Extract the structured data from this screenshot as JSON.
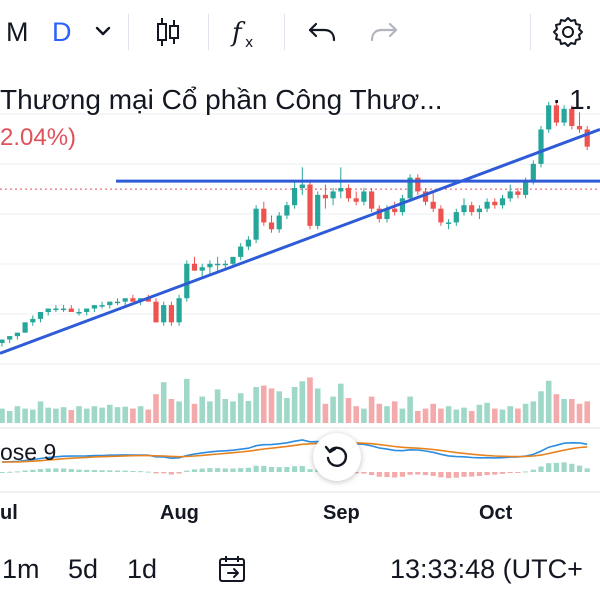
{
  "toolbar": {
    "interval_label": "M",
    "symbol_badge": "D",
    "icons": [
      "chevron-down-icon",
      "candles-icon",
      "indicators-fx-icon",
      "undo-icon",
      "redo-icon",
      "settings-icon"
    ]
  },
  "legend": {
    "title": "Thương mại Cổ phần Công Thươ...",
    "price": "· 1.",
    "change": "2.04%)"
  },
  "indicator": {
    "label": "ose 9"
  },
  "bottom_bar": {
    "ranges": [
      "1m",
      "5d",
      "1d"
    ],
    "time": "13:33:48 (UTC+"
  },
  "colors": {
    "up": "#26a69a",
    "down": "#ef5350",
    "vol_up": "#9fd8c8",
    "vol_down": "#f4a9ab",
    "trendline": "#2f5bd6",
    "macd": "#2c8de0",
    "signal": "#e8821e",
    "price_line": "#e0505a"
  },
  "chart_data": {
    "type": "candlestick",
    "x_labels": [
      "ul",
      "Aug",
      "Sep",
      "Oct"
    ],
    "candles": [
      [
        0.44,
        0.45,
        0.43,
        0.45
      ],
      [
        0.45,
        0.46,
        0.44,
        0.46
      ],
      [
        0.46,
        0.47,
        0.45,
        0.47
      ],
      [
        0.47,
        0.5,
        0.47,
        0.5
      ],
      [
        0.5,
        0.52,
        0.49,
        0.51
      ],
      [
        0.51,
        0.53,
        0.5,
        0.53
      ],
      [
        0.53,
        0.54,
        0.52,
        0.54
      ],
      [
        0.54,
        0.55,
        0.53,
        0.54
      ],
      [
        0.54,
        0.55,
        0.53,
        0.54
      ],
      [
        0.54,
        0.55,
        0.53,
        0.53
      ],
      [
        0.53,
        0.54,
        0.52,
        0.53
      ],
      [
        0.53,
        0.54,
        0.52,
        0.54
      ],
      [
        0.54,
        0.55,
        0.53,
        0.55
      ],
      [
        0.55,
        0.56,
        0.54,
        0.55
      ],
      [
        0.55,
        0.56,
        0.54,
        0.56
      ],
      [
        0.56,
        0.57,
        0.55,
        0.56
      ],
      [
        0.56,
        0.57,
        0.55,
        0.57
      ],
      [
        0.57,
        0.58,
        0.56,
        0.56
      ],
      [
        0.56,
        0.57,
        0.55,
        0.57
      ],
      [
        0.57,
        0.58,
        0.56,
        0.56
      ],
      [
        0.56,
        0.57,
        0.5,
        0.5
      ],
      [
        0.5,
        0.56,
        0.49,
        0.55
      ],
      [
        0.55,
        0.56,
        0.49,
        0.5
      ],
      [
        0.5,
        0.58,
        0.49,
        0.57
      ],
      [
        0.57,
        0.68,
        0.56,
        0.67
      ],
      [
        0.67,
        0.69,
        0.65,
        0.65
      ],
      [
        0.65,
        0.67,
        0.63,
        0.66
      ],
      [
        0.66,
        0.68,
        0.64,
        0.67
      ],
      [
        0.67,
        0.69,
        0.65,
        0.67
      ],
      [
        0.67,
        0.68,
        0.65,
        0.67
      ],
      [
        0.67,
        0.69,
        0.66,
        0.69
      ],
      [
        0.69,
        0.73,
        0.68,
        0.72
      ],
      [
        0.72,
        0.75,
        0.71,
        0.74
      ],
      [
        0.74,
        0.84,
        0.73,
        0.83
      ],
      [
        0.83,
        0.85,
        0.78,
        0.79
      ],
      [
        0.79,
        0.81,
        0.76,
        0.77
      ],
      [
        0.77,
        0.82,
        0.76,
        0.81
      ],
      [
        0.81,
        0.85,
        0.8,
        0.84
      ],
      [
        0.84,
        0.91,
        0.83,
        0.89
      ],
      [
        0.89,
        0.95,
        0.87,
        0.9
      ],
      [
        0.9,
        0.91,
        0.77,
        0.78
      ],
      [
        0.78,
        0.88,
        0.77,
        0.87
      ],
      [
        0.87,
        0.9,
        0.83,
        0.86
      ],
      [
        0.86,
        0.89,
        0.84,
        0.88
      ],
      [
        0.88,
        0.95,
        0.86,
        0.89
      ],
      [
        0.89,
        0.9,
        0.85,
        0.86
      ],
      [
        0.86,
        0.88,
        0.84,
        0.85
      ],
      [
        0.85,
        0.89,
        0.84,
        0.88
      ],
      [
        0.88,
        0.89,
        0.82,
        0.83
      ],
      [
        0.83,
        0.84,
        0.79,
        0.8
      ],
      [
        0.8,
        0.84,
        0.79,
        0.83
      ],
      [
        0.83,
        0.85,
        0.81,
        0.82
      ],
      [
        0.82,
        0.87,
        0.81,
        0.86
      ],
      [
        0.86,
        0.93,
        0.85,
        0.92
      ],
      [
        0.92,
        0.93,
        0.87,
        0.88
      ],
      [
        0.88,
        0.89,
        0.84,
        0.85
      ],
      [
        0.85,
        0.88,
        0.82,
        0.83
      ],
      [
        0.83,
        0.84,
        0.78,
        0.79
      ],
      [
        0.79,
        0.8,
        0.77,
        0.79
      ],
      [
        0.79,
        0.83,
        0.78,
        0.82
      ],
      [
        0.82,
        0.86,
        0.81,
        0.84
      ],
      [
        0.84,
        0.85,
        0.81,
        0.82
      ],
      [
        0.82,
        0.84,
        0.8,
        0.83
      ],
      [
        0.83,
        0.86,
        0.82,
        0.85
      ],
      [
        0.85,
        0.86,
        0.83,
        0.84
      ],
      [
        0.84,
        0.87,
        0.83,
        0.86
      ],
      [
        0.86,
        0.9,
        0.85,
        0.88
      ],
      [
        0.88,
        0.89,
        0.86,
        0.87
      ],
      [
        0.87,
        0.92,
        0.86,
        0.91
      ],
      [
        0.91,
        0.97,
        0.9,
        0.96
      ],
      [
        0.96,
        1.07,
        0.95,
        1.06
      ],
      [
        1.06,
        1.14,
        1.05,
        1.13
      ],
      [
        1.13,
        1.14,
        1.07,
        1.08
      ],
      [
        1.08,
        1.13,
        1.07,
        1.12
      ],
      [
        1.12,
        1.13,
        1.06,
        1.07
      ],
      [
        1.07,
        1.11,
        1.05,
        1.06
      ],
      [
        1.06,
        1.07,
        1.0,
        1.01
      ]
    ],
    "volumes": [
      0.3,
      0.25,
      0.35,
      0.3,
      0.28,
      0.45,
      0.32,
      0.3,
      0.33,
      0.27,
      0.35,
      0.3,
      0.35,
      0.32,
      0.38,
      0.33,
      0.34,
      0.3,
      0.35,
      0.28,
      0.6,
      0.85,
      0.5,
      0.45,
      0.92,
      0.4,
      0.55,
      0.45,
      0.7,
      0.5,
      0.45,
      0.62,
      0.46,
      0.75,
      0.78,
      0.72,
      0.66,
      0.52,
      0.75,
      0.87,
      0.95,
      0.72,
      0.4,
      0.55,
      0.82,
      0.52,
      0.35,
      0.3,
      0.55,
      0.4,
      0.35,
      0.45,
      0.3,
      0.55,
      0.25,
      0.3,
      0.4,
      0.3,
      0.35,
      0.28,
      0.32,
      0.25,
      0.38,
      0.42,
      0.3,
      0.28,
      0.35,
      0.3,
      0.4,
      0.45,
      0.66,
      0.88,
      0.6,
      0.5,
      0.5,
      0.4,
      0.45
    ],
    "resistance": [
      0.91,
      0.91
    ],
    "support": [
      0.41,
      1.06
    ],
    "last_price": 0.91
  }
}
